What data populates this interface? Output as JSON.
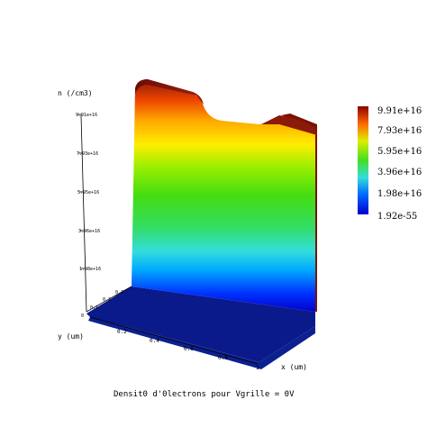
{
  "chart_data": {
    "type": "surface",
    "title": "Densit0 d'0lectrons pour Vgrille = 0V",
    "zlabel": "n (/cm3)",
    "xlabel": "x (um)",
    "ylabel": "y (um)",
    "z_ticks": [
      "1.98e+16",
      "3.96e+16",
      "5.95e+16",
      "7.93e+16",
      "9.91e+16"
    ],
    "x_ticks": [
      "0.2",
      "0.4",
      "0.6",
      "0.8",
      "1"
    ],
    "y_ticks": [
      "0",
      "0.1",
      "0.2",
      "0.3"
    ],
    "colorbar": {
      "labels": [
        "9.91e+16",
        "7.93e+16",
        "5.95e+16",
        "3.96e+16",
        "1.98e+16",
        "1.92e-55"
      ],
      "colors": [
        "#8b0000",
        "#ff3300",
        "#ffcc00",
        "#66ee00",
        "#33dd55",
        "#33dddd",
        "#0066ff",
        "#0000cc"
      ]
    },
    "grid": false,
    "legend_position": "right"
  }
}
